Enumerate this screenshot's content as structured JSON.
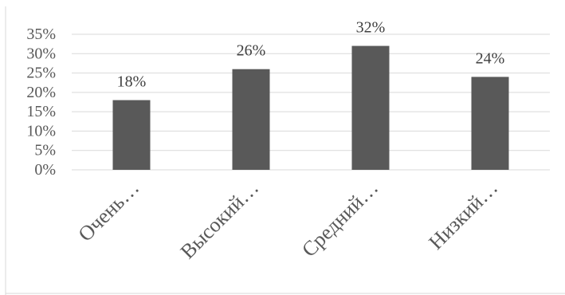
{
  "chart_data": {
    "type": "bar",
    "categories": [
      "Очень…",
      "Высокий…",
      "Средний…",
      "Низкий…"
    ],
    "values": [
      18,
      26,
      32,
      24
    ],
    "data_labels": [
      "18%",
      "26%",
      "32%",
      "24%"
    ],
    "ylim": [
      0,
      35
    ],
    "y_ticks": [
      0,
      5,
      10,
      15,
      20,
      25,
      30,
      35
    ],
    "y_tick_labels": [
      "0%",
      "5%",
      "10%",
      "15%",
      "20%",
      "25%",
      "30%",
      "35%"
    ],
    "grid": true,
    "legend": "none",
    "colors": {
      "bar": "#595959",
      "grid": "#d9d9d9",
      "tick_text": "#595959",
      "label_text": "#404040",
      "category_text": "#595959"
    }
  }
}
